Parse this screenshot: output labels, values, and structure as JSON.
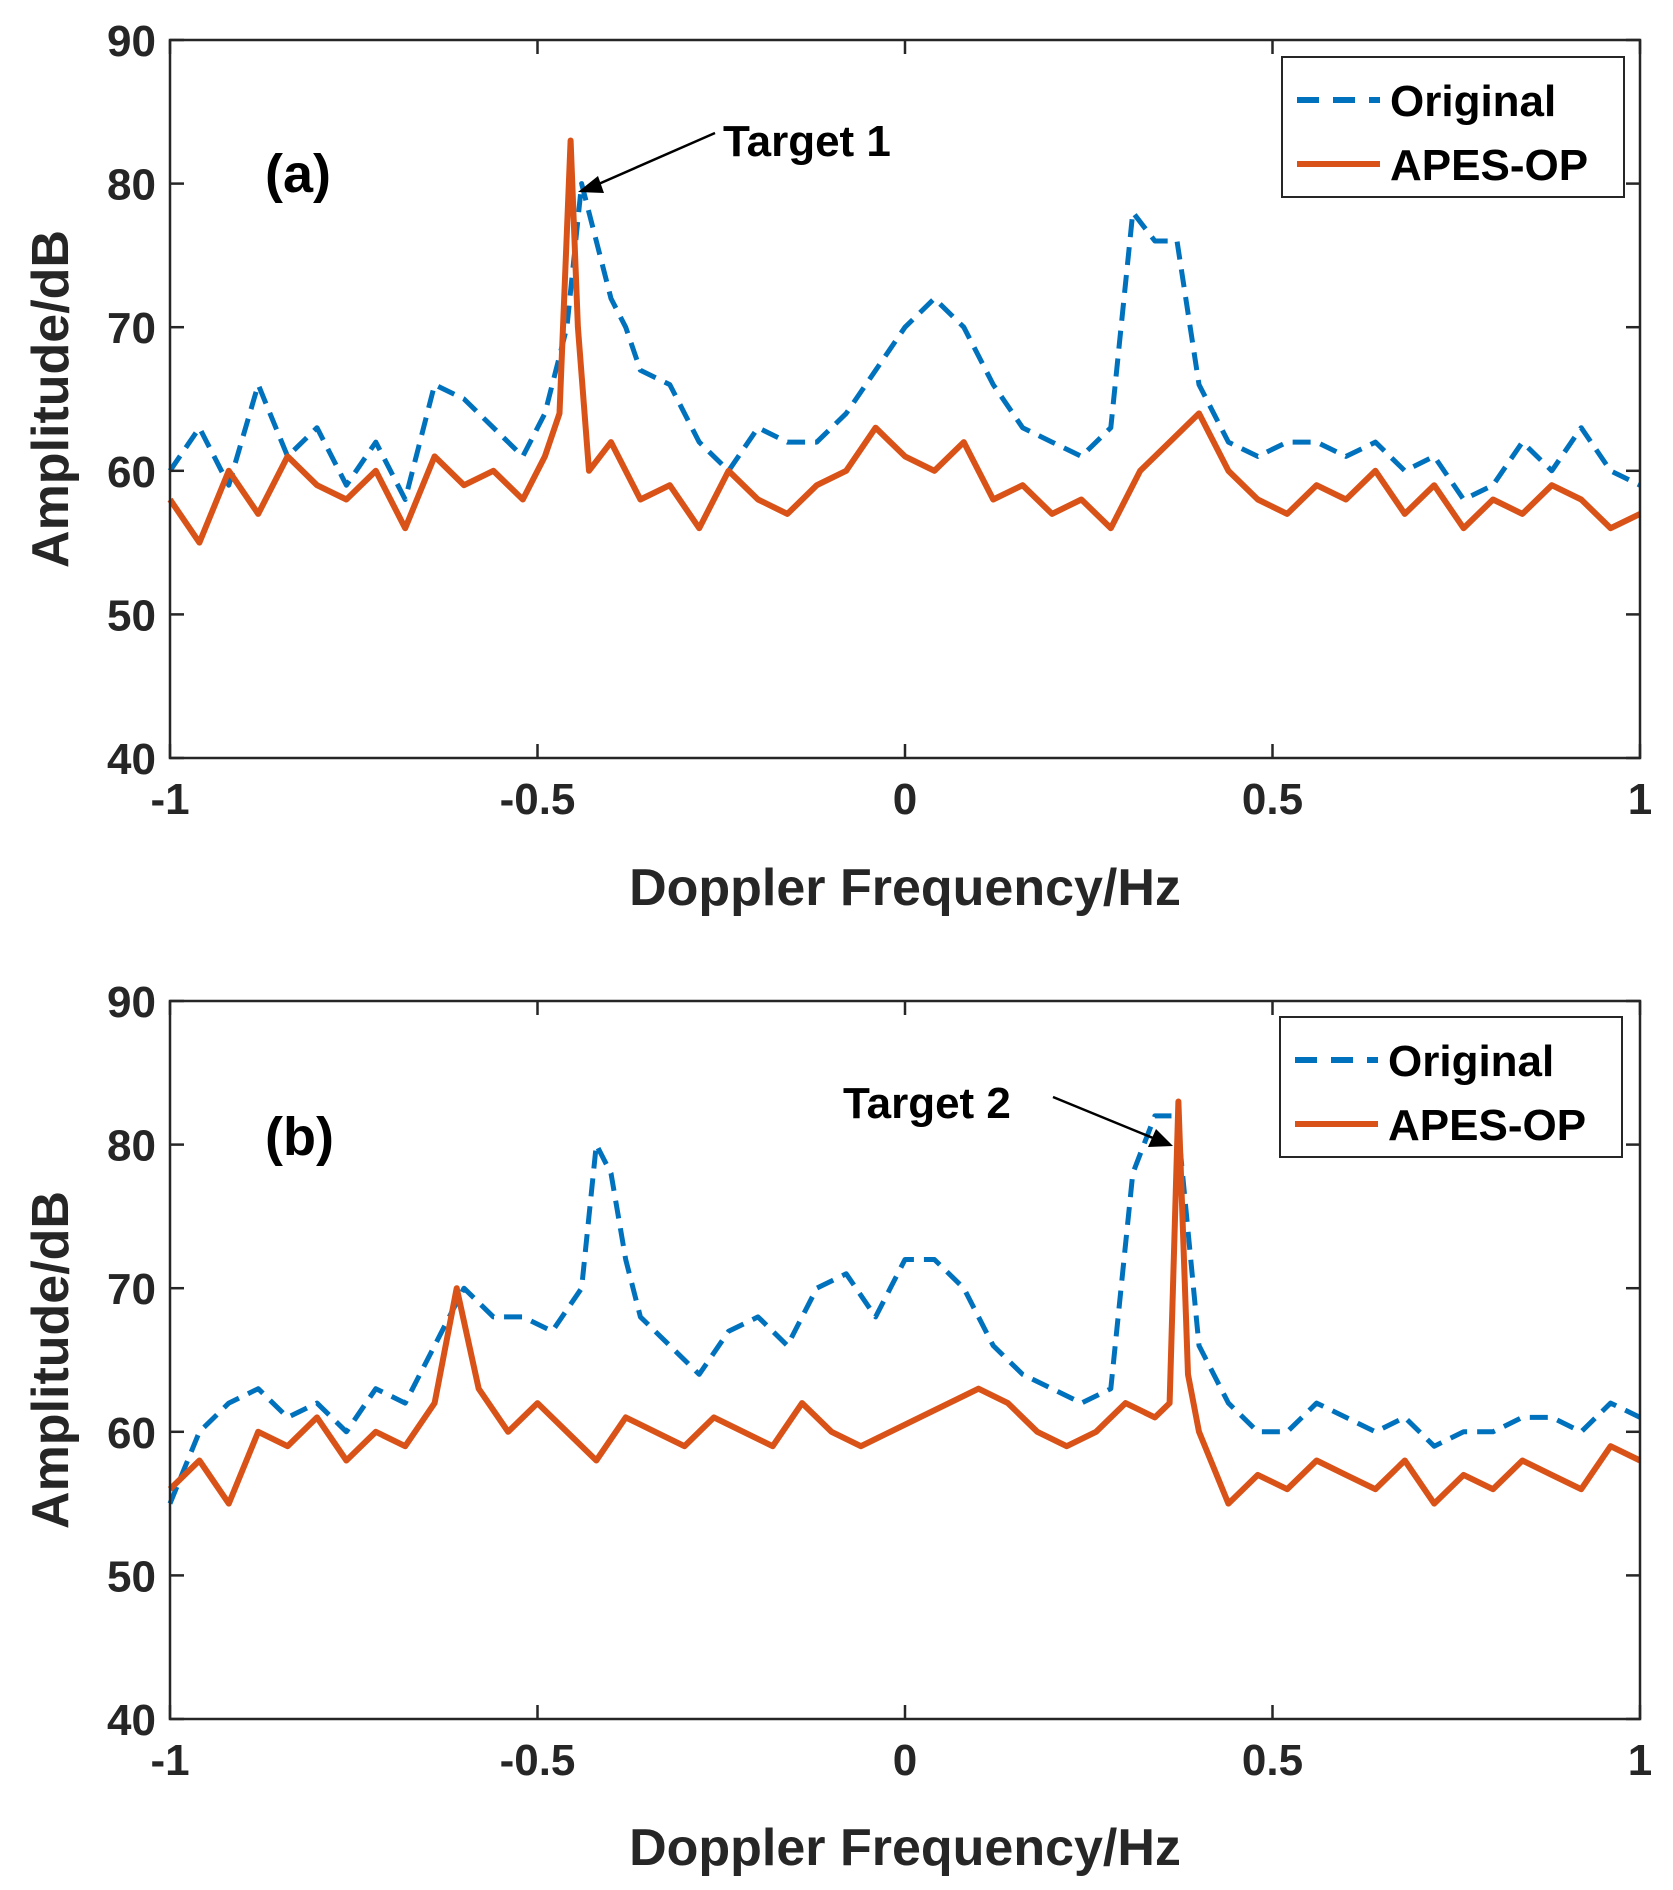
{
  "chart_data": [
    {
      "type": "line",
      "panel_label": "(a)",
      "xlabel": "Doppler Frequency/Hz",
      "ylabel": "Amplitude/dB",
      "xlim": [
        -1,
        1
      ],
      "ylim": [
        40,
        90
      ],
      "xticks": [
        -1,
        -0.5,
        0,
        0.5,
        1
      ],
      "xtick_labels": [
        "-1",
        "-0.5",
        "0",
        "0.5",
        "1"
      ],
      "yticks": [
        40,
        50,
        60,
        70,
        80,
        90
      ],
      "ytick_labels": [
        "40",
        "50",
        "60",
        "70",
        "80",
        "90"
      ],
      "legend": [
        "Original",
        "APES-OP"
      ],
      "legend_position": "top-right",
      "annotation": {
        "text": "Target 1",
        "x": -0.445,
        "y": 79.5
      },
      "series": [
        {
          "name": "Original",
          "style": "dashed",
          "color": "#0072BD",
          "x": [
            -1,
            -0.96,
            -0.92,
            -0.88,
            -0.84,
            -0.8,
            -0.76,
            -0.72,
            -0.68,
            -0.64,
            -0.6,
            -0.56,
            -0.52,
            -0.49,
            -0.46,
            -0.44,
            -0.42,
            -0.4,
            -0.38,
            -0.36,
            -0.32,
            -0.28,
            -0.24,
            -0.2,
            -0.16,
            -0.12,
            -0.08,
            -0.04,
            0,
            0.04,
            0.08,
            0.12,
            0.16,
            0.2,
            0.24,
            0.28,
            0.31,
            0.34,
            0.37,
            0.4,
            0.44,
            0.48,
            0.52,
            0.56,
            0.6,
            0.64,
            0.68,
            0.72,
            0.76,
            0.8,
            0.84,
            0.88,
            0.92,
            0.96,
            1
          ],
          "y": [
            60,
            63,
            59,
            66,
            61,
            63,
            59,
            62,
            58,
            66,
            65,
            63,
            61,
            64,
            70,
            80,
            76,
            72,
            70,
            67,
            66,
            62,
            60,
            63,
            62,
            62,
            64,
            67,
            70,
            72,
            70,
            66,
            63,
            62,
            61,
            63,
            78,
            76,
            76,
            66,
            62,
            61,
            62,
            62,
            61,
            62,
            60,
            61,
            58,
            59,
            62,
            60,
            63,
            60,
            59
          ]
        },
        {
          "name": "APES-OP",
          "style": "solid",
          "color": "#D95319",
          "x": [
            -1,
            -0.96,
            -0.92,
            -0.88,
            -0.84,
            -0.8,
            -0.76,
            -0.72,
            -0.68,
            -0.64,
            -0.6,
            -0.56,
            -0.52,
            -0.49,
            -0.47,
            -0.455,
            -0.445,
            -0.43,
            -0.4,
            -0.36,
            -0.32,
            -0.28,
            -0.24,
            -0.2,
            -0.16,
            -0.12,
            -0.08,
            -0.04,
            0,
            0.04,
            0.08,
            0.12,
            0.16,
            0.2,
            0.24,
            0.28,
            0.32,
            0.36,
            0.4,
            0.44,
            0.48,
            0.52,
            0.56,
            0.6,
            0.64,
            0.68,
            0.72,
            0.76,
            0.8,
            0.84,
            0.88,
            0.92,
            0.96,
            1
          ],
          "y": [
            58,
            55,
            60,
            57,
            61,
            59,
            58,
            60,
            56,
            61,
            59,
            60,
            58,
            61,
            64,
            83,
            70,
            60,
            62,
            58,
            59,
            56,
            60,
            58,
            57,
            59,
            60,
            63,
            61,
            60,
            62,
            58,
            59,
            57,
            58,
            56,
            60,
            62,
            64,
            60,
            58,
            57,
            59,
            58,
            60,
            57,
            59,
            56,
            58,
            57,
            59,
            58,
            56,
            57
          ]
        }
      ]
    },
    {
      "type": "line",
      "panel_label": "(b)",
      "xlabel": "Doppler Frequency/Hz",
      "ylabel": "Amplitude/dB",
      "xlim": [
        -1,
        1
      ],
      "ylim": [
        40,
        90
      ],
      "xticks": [
        -1,
        -0.5,
        0,
        0.5,
        1
      ],
      "xtick_labels": [
        "-1",
        "-0.5",
        "0",
        "0.5",
        "1"
      ],
      "yticks": [
        40,
        50,
        60,
        70,
        80,
        90
      ],
      "ytick_labels": [
        "40",
        "50",
        "60",
        "70",
        "80",
        "90"
      ],
      "legend": [
        "Original",
        "APES-OP"
      ],
      "legend_position": "top-right",
      "annotation": {
        "text": "Target 2",
        "x": 0.37,
        "y": 79.5
      },
      "series": [
        {
          "name": "Original",
          "style": "dashed",
          "color": "#0072BD",
          "x": [
            -1,
            -0.96,
            -0.92,
            -0.88,
            -0.84,
            -0.8,
            -0.76,
            -0.72,
            -0.68,
            -0.64,
            -0.6,
            -0.56,
            -0.52,
            -0.48,
            -0.44,
            -0.42,
            -0.4,
            -0.38,
            -0.36,
            -0.32,
            -0.28,
            -0.24,
            -0.2,
            -0.16,
            -0.12,
            -0.08,
            -0.04,
            0,
            0.04,
            0.08,
            0.12,
            0.16,
            0.2,
            0.24,
            0.28,
            0.31,
            0.34,
            0.37,
            0.4,
            0.44,
            0.48,
            0.52,
            0.56,
            0.6,
            0.64,
            0.68,
            0.72,
            0.76,
            0.8,
            0.84,
            0.88,
            0.92,
            0.96,
            1
          ],
          "y": [
            55,
            60,
            62,
            63,
            61,
            62,
            60,
            63,
            62,
            66,
            70,
            68,
            68,
            67,
            70,
            80,
            78,
            72,
            68,
            66,
            64,
            67,
            68,
            66,
            70,
            71,
            68,
            72,
            72,
            70,
            66,
            64,
            63,
            62,
            63,
            78,
            82,
            82,
            66,
            62,
            60,
            60,
            62,
            61,
            60,
            61,
            59,
            60,
            60,
            61,
            61,
            60,
            62,
            61
          ]
        },
        {
          "name": "APES-OP",
          "style": "solid",
          "color": "#D95319",
          "x": [
            -1,
            -0.96,
            -0.92,
            -0.88,
            -0.84,
            -0.8,
            -0.76,
            -0.72,
            -0.68,
            -0.64,
            -0.61,
            -0.58,
            -0.54,
            -0.5,
            -0.46,
            -0.42,
            -0.38,
            -0.34,
            -0.3,
            -0.26,
            -0.22,
            -0.18,
            -0.14,
            -0.1,
            -0.06,
            -0.02,
            0.02,
            0.06,
            0.1,
            0.14,
            0.18,
            0.22,
            0.26,
            0.3,
            0.34,
            0.36,
            0.372,
            0.385,
            0.4,
            0.44,
            0.48,
            0.52,
            0.56,
            0.6,
            0.64,
            0.68,
            0.72,
            0.76,
            0.8,
            0.84,
            0.88,
            0.92,
            0.96,
            1
          ],
          "y": [
            56,
            58,
            55,
            60,
            59,
            61,
            58,
            60,
            59,
            62,
            70,
            63,
            60,
            62,
            60,
            58,
            61,
            60,
            59,
            61,
            60,
            59,
            62,
            60,
            59,
            60,
            61,
            62,
            63,
            62,
            60,
            59,
            60,
            62,
            61,
            62,
            83,
            64,
            60,
            55,
            57,
            56,
            58,
            57,
            56,
            58,
            55,
            57,
            56,
            58,
            57,
            56,
            59,
            58
          ]
        }
      ]
    }
  ]
}
